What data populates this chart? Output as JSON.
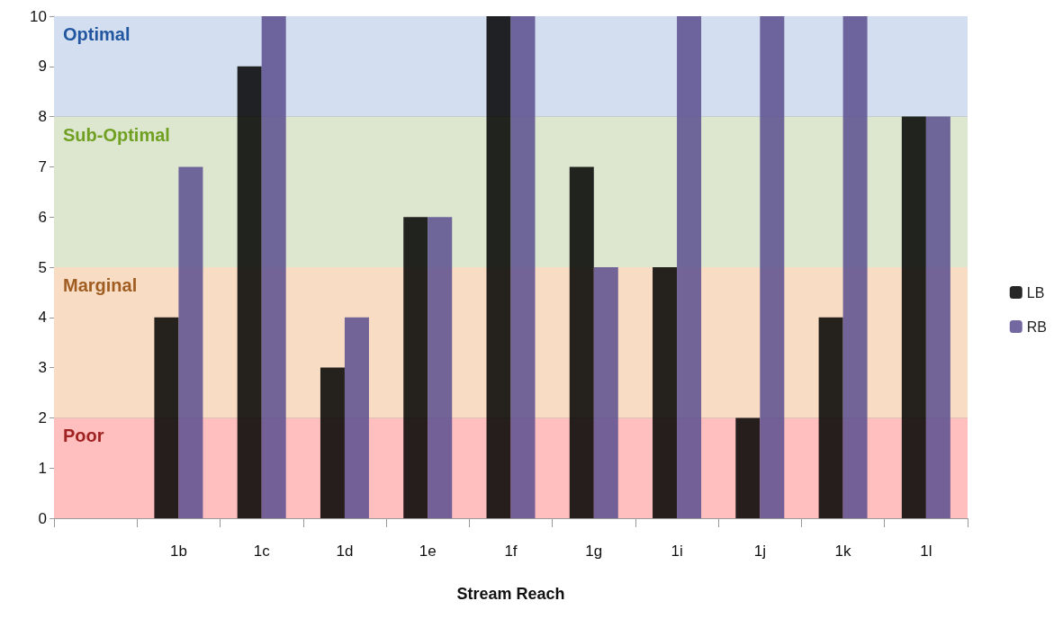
{
  "chart_data": {
    "type": "bar",
    "xlabel": "Stream Reach",
    "categories": [
      null,
      "1b",
      "1c",
      "1d",
      "1e",
      "1f",
      "1g",
      "1i",
      "1j",
      "1k",
      "1l"
    ],
    "series": [
      {
        "name": "LB",
        "color": "#000000",
        "values": [
          null,
          4,
          9,
          3,
          6,
          10,
          7,
          5,
          2,
          4,
          8
        ]
      },
      {
        "name": "RB",
        "color": "#5b4f8f",
        "values": [
          null,
          7,
          10,
          4,
          6,
          10,
          5,
          10,
          10,
          10,
          8
        ]
      }
    ],
    "ylim": [
      0,
      10
    ],
    "yticks": [
      0,
      1,
      2,
      3,
      4,
      5,
      6,
      7,
      8,
      9,
      10
    ],
    "grid": "y",
    "legend": "right",
    "bands": [
      {
        "axis": "y",
        "from": 0,
        "to": 2,
        "label": "Poor",
        "color": "#ffbfbf"
      },
      {
        "axis": "y",
        "from": 2,
        "to": 5,
        "label": "Marginal",
        "color": "#f8dcc4"
      },
      {
        "axis": "y",
        "from": 5,
        "to": 8,
        "label": "Sub-Optimal",
        "color": "#dde6cf"
      },
      {
        "axis": "y",
        "from": 8,
        "to": 10,
        "label": "Optimal",
        "color": "#d3dff0"
      }
    ]
  }
}
